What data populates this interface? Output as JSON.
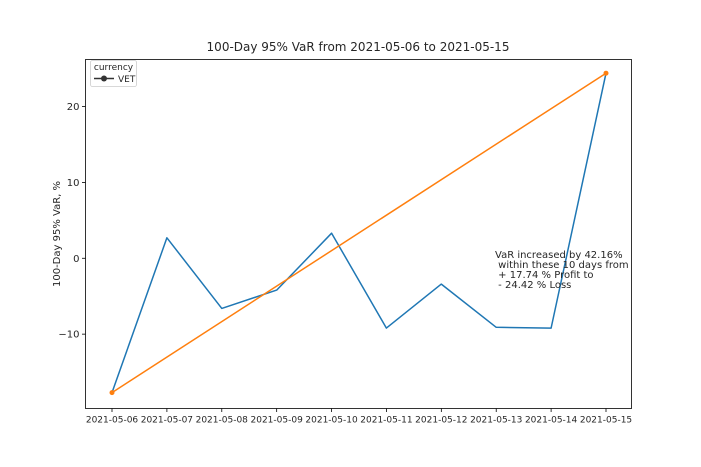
{
  "chart_data": {
    "type": "line",
    "title": "100-Day 95% VaR from 2021-05-06 to 2021-05-15",
    "xlabel": "",
    "ylabel": "100-Day 95% VaR, %",
    "categories": [
      "2021-05-06",
      "2021-05-07",
      "2021-05-08",
      "2021-05-09",
      "2021-05-10",
      "2021-05-11",
      "2021-05-12",
      "2021-05-13",
      "2021-05-14",
      "2021-05-15"
    ],
    "yticks": [
      -10,
      0,
      10,
      20
    ],
    "ylim": [
      -19.8,
      26.2
    ],
    "grid": false,
    "legend": {
      "title": "currency",
      "placement": "top-left",
      "entries": [
        "VET"
      ]
    },
    "series": [
      {
        "name": "VET",
        "color": "#1f77b4",
        "values": [
          -17.7,
          2.7,
          -6.6,
          -4.2,
          3.3,
          -9.2,
          -3.4,
          -9.1,
          -9.2,
          24.4
        ]
      },
      {
        "color": "#ff7f0e",
        "endpoint_markers": true,
        "values": [
          -17.7,
          null,
          null,
          null,
          null,
          null,
          null,
          null,
          null,
          24.4
        ]
      }
    ],
    "annotation": {
      "lines": [
        "VaR increased by 42.16%",
        " within these 10 days from",
        " + 17.74 % Profit to",
        " - 24.42 % Loss"
      ],
      "at": {
        "category": "2021-05-13",
        "y": 0
      }
    }
  }
}
